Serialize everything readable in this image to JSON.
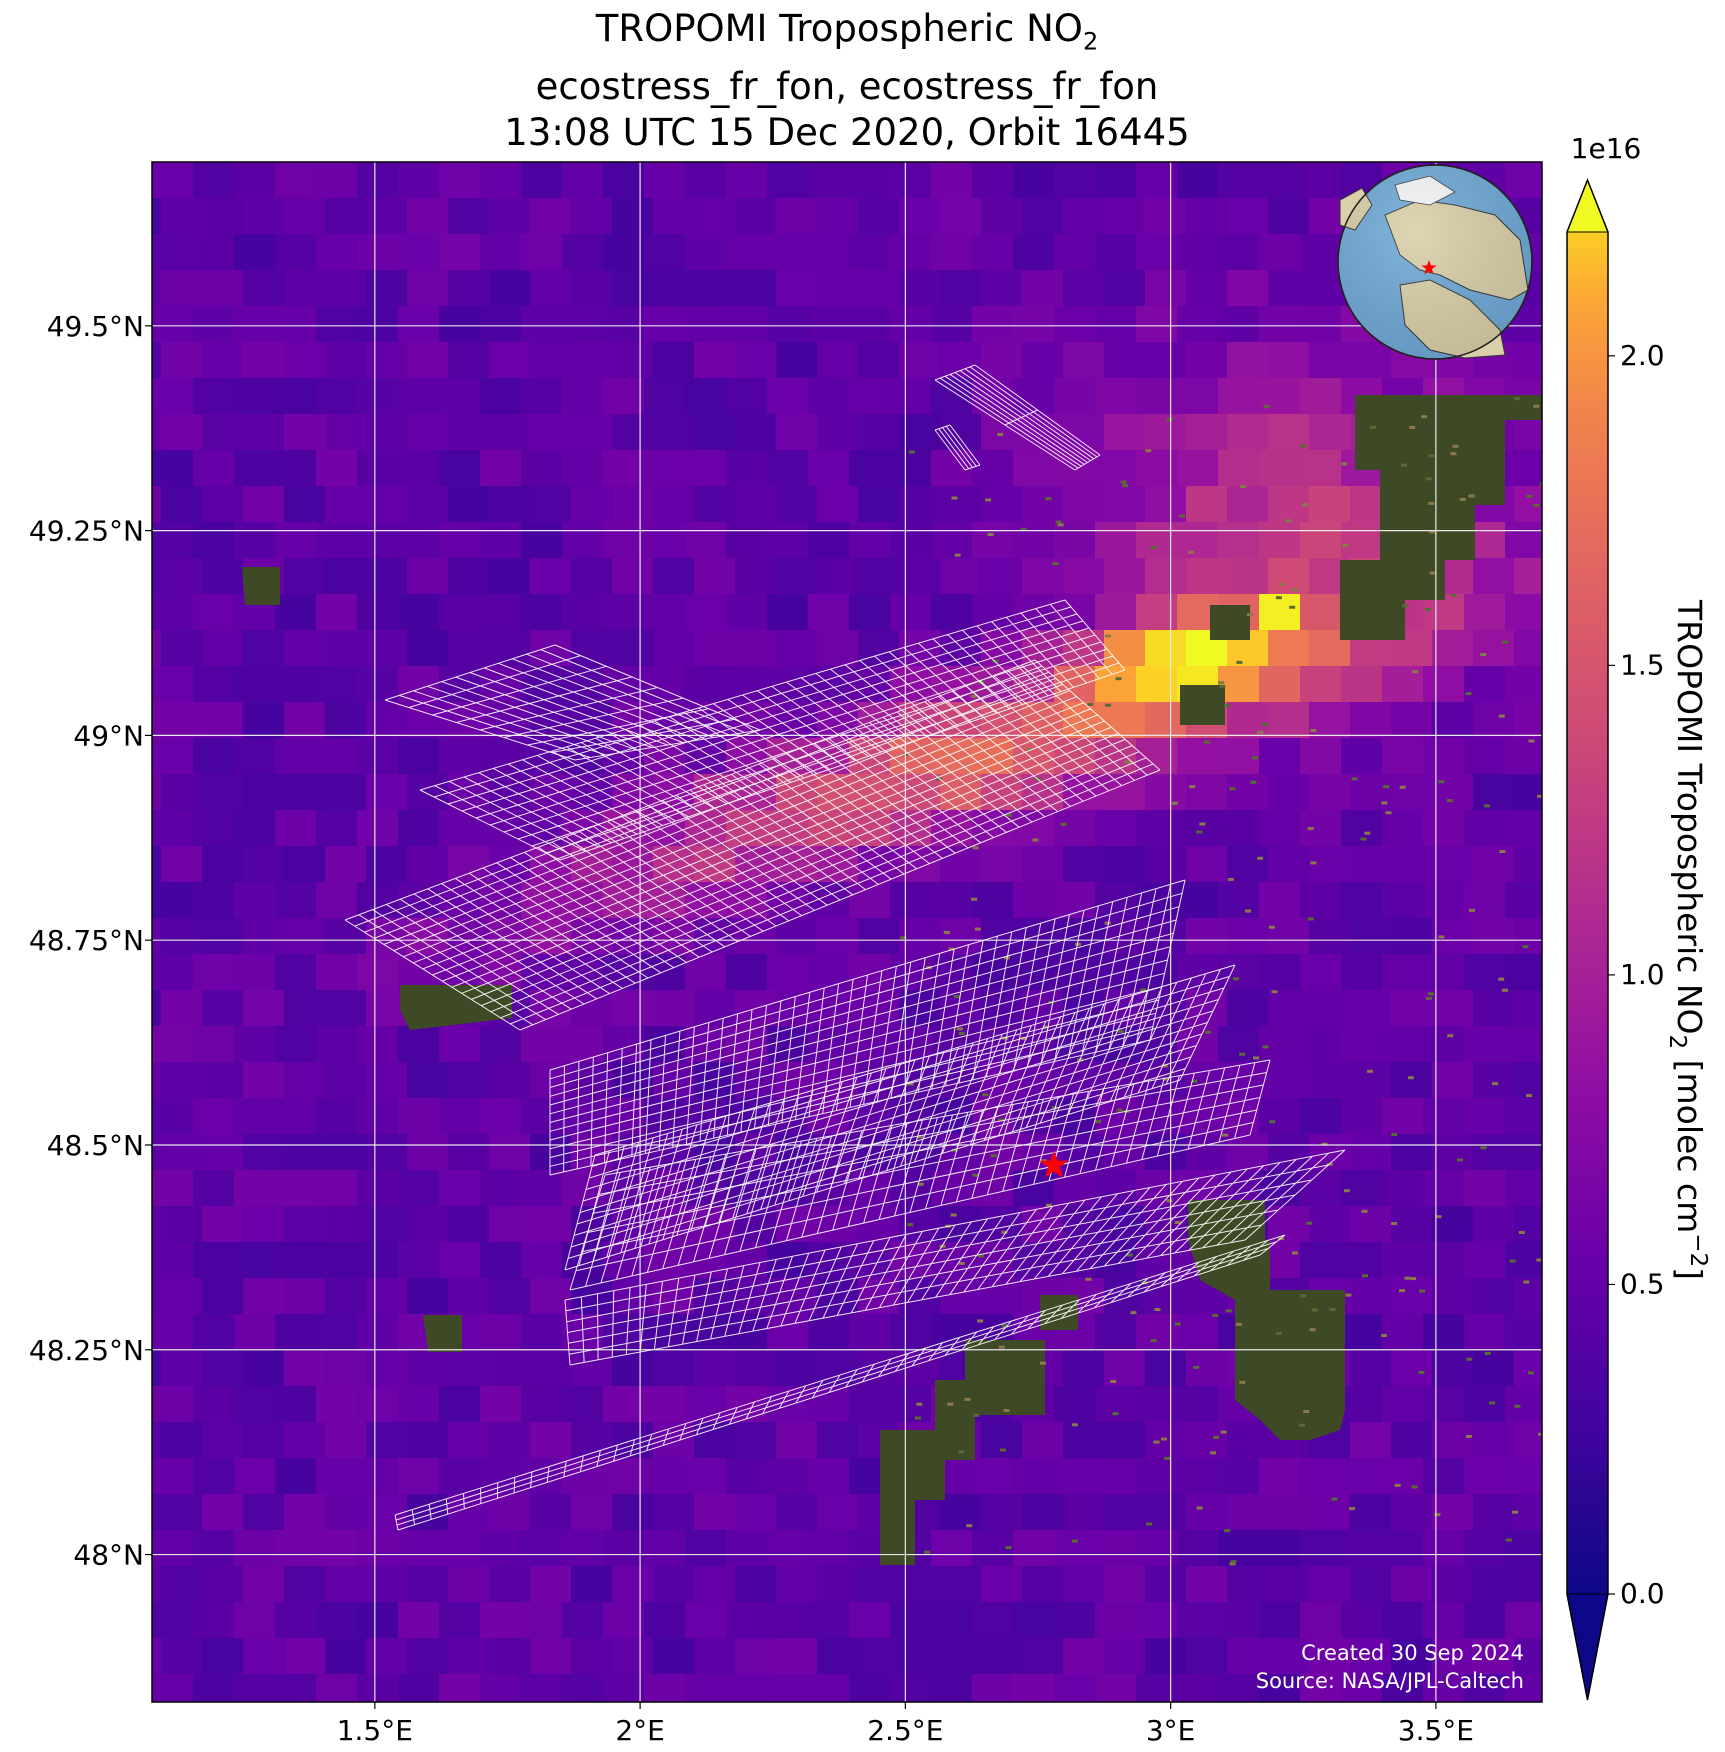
{
  "title": {
    "line1_prefix": "TROPOMI Tropospheric NO",
    "line1_sub": "2",
    "line2": "ecostress_fr_fon, ecostress_fr_fon",
    "line3": "13:08 UTC 15 Dec 2020, Orbit 16445"
  },
  "map": {
    "lon_range": [
      1.08,
      3.7
    ],
    "lat_range": [
      47.82,
      49.7
    ],
    "gridline_color": "#e8e8e8",
    "target_star": {
      "lon": 2.78,
      "lat": 48.475,
      "color": "#ff0000"
    },
    "x_ticks": [
      {
        "value": 1.5,
        "label": "1.5°E"
      },
      {
        "value": 2.0,
        "label": "2°E"
      },
      {
        "value": 2.5,
        "label": "2.5°E"
      },
      {
        "value": 3.0,
        "label": "3°E"
      },
      {
        "value": 3.5,
        "label": "3.5°E"
      }
    ],
    "y_ticks": [
      {
        "value": 49.5,
        "label": "49.5°N"
      },
      {
        "value": 49.25,
        "label": "49.25°N"
      },
      {
        "value": 49.0,
        "label": "49°N"
      },
      {
        "value": 48.75,
        "label": "48.75°N"
      },
      {
        "value": 48.5,
        "label": "48.5°N"
      },
      {
        "value": 48.25,
        "label": "48.25°N"
      },
      {
        "value": 48.0,
        "label": "48°N"
      }
    ],
    "ecostress_grid_color": "#ffffff",
    "inset_globe": {
      "center_lon": 2.5,
      "center_lat": 49.0,
      "marker_color": "#ff0000",
      "ocean_color": "#6fa9d6",
      "land_color": "#d9cfa8"
    }
  },
  "colorbar": {
    "colormap": "plasma",
    "range": [
      0.0,
      2.2
    ],
    "exponent_label": "1e16",
    "ticks": [
      {
        "value": 0.0,
        "label": "0.0"
      },
      {
        "value": 0.5,
        "label": "0.5"
      },
      {
        "value": 1.0,
        "label": "1.0"
      },
      {
        "value": 1.5,
        "label": "1.5"
      },
      {
        "value": 2.0,
        "label": "2.0"
      }
    ],
    "label_prefix": "TROPOMI Tropospheric NO",
    "label_sub": "2",
    "label_mid": " [molec cm",
    "label_sup": "−2",
    "label_suffix": "]"
  },
  "credits": {
    "line1": "Created 30 Sep 2024",
    "line2": "Source: NASA/JPL-Caltech"
  }
}
